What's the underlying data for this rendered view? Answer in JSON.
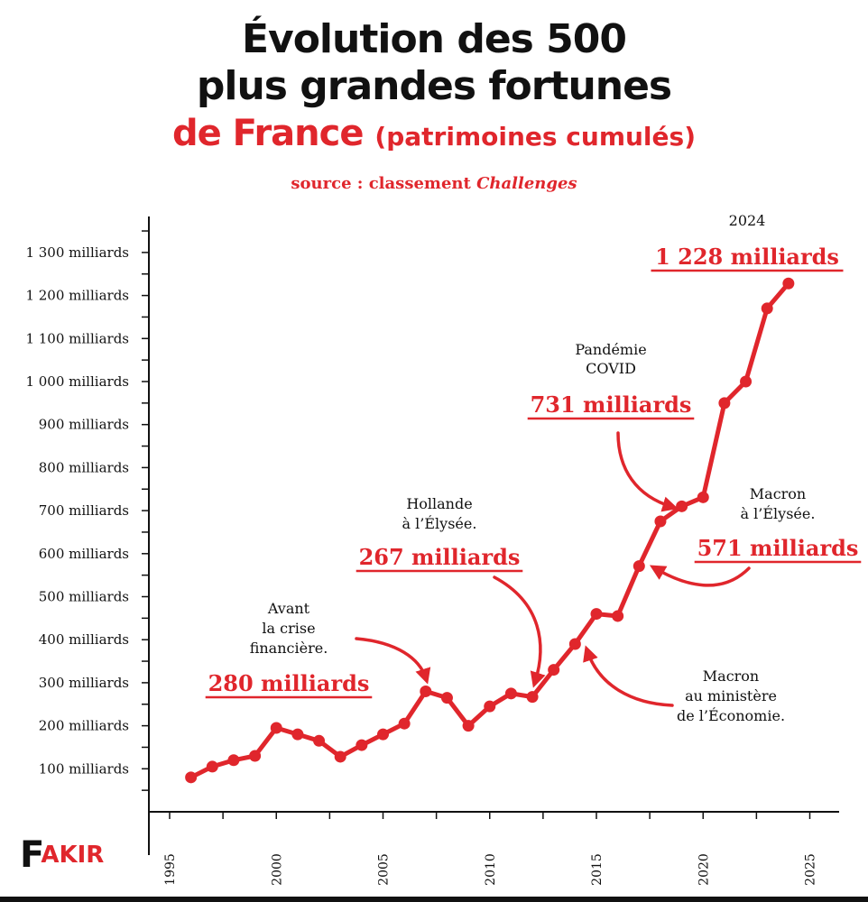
{
  "header": {
    "title_line1": "Évolution des 500",
    "title_line2": "plus grandes fortunes",
    "title_line3": "de France",
    "title_paren": "(patrimoines cumulés)",
    "source_prefix": "source : classement",
    "source_name": "Challenges"
  },
  "logo": {
    "letter": "F",
    "rest": "AKIR"
  },
  "colors": {
    "accent": "#e0262c",
    "ink": "#111111"
  },
  "chart_data": {
    "type": "line",
    "title": "Évolution des 500 plus grandes fortunes de France (patrimoines cumulés)",
    "xlabel": "",
    "ylabel": "",
    "xlim": [
      1993,
      2026
    ],
    "ylim": [
      0,
      1400
    ],
    "x_ticks": [
      1995,
      2000,
      2005,
      2010,
      2015,
      2020,
      2025
    ],
    "y_ticks": [
      100,
      200,
      300,
      400,
      500,
      600,
      700,
      800,
      900,
      1000,
      1100,
      1200,
      1300
    ],
    "y_tick_labels": [
      "100 milliards",
      "200 milliards",
      "300 milliards",
      "400 milliards",
      "500 milliards",
      "600 milliards",
      "700 milliards",
      "800 milliards",
      "900 milliards",
      "1 000 milliards",
      "1 100 milliards",
      "1 200 milliards",
      "1 300 milliards"
    ],
    "grid": false,
    "series": [
      {
        "name": "",
        "color": "#e0262c",
        "x": [
          1996,
          1997,
          1998,
          1999,
          2000,
          2001,
          2002,
          2003,
          2004,
          2005,
          2006,
          2007,
          2008,
          2009,
          2010,
          2011,
          2012,
          2013,
          2014,
          2015,
          2016,
          2017,
          2018,
          2019,
          2020,
          2021,
          2022,
          2023,
          2024
        ],
        "values": [
          80,
          105,
          120,
          130,
          195,
          180,
          165,
          128,
          155,
          180,
          205,
          280,
          265,
          200,
          245,
          275,
          267,
          330,
          390,
          460,
          455,
          571,
          675,
          710,
          731,
          950,
          1000,
          1170,
          1228
        ]
      }
    ],
    "annotations": [
      {
        "lines": [
          "Avant",
          "la crise",
          "financière."
        ],
        "value_label": "280 milliards",
        "year": 2007
      },
      {
        "lines": [
          "Hollande",
          "à l’Élysée."
        ],
        "value_label": "267 milliards",
        "year": 2012
      },
      {
        "lines": [
          "Macron",
          "au ministère",
          "de l’Économie."
        ],
        "value_label": "",
        "year": 2014
      },
      {
        "lines": [
          "Macron",
          "à l’Élysée."
        ],
        "value_label": "571 milliards",
        "year": 2017
      },
      {
        "lines": [
          "Pandémie",
          "COVID"
        ],
        "value_label": "731 milliards",
        "year": 2020
      },
      {
        "lines": [
          "2024"
        ],
        "value_label": "1 228 milliards",
        "year": 2024
      }
    ]
  }
}
